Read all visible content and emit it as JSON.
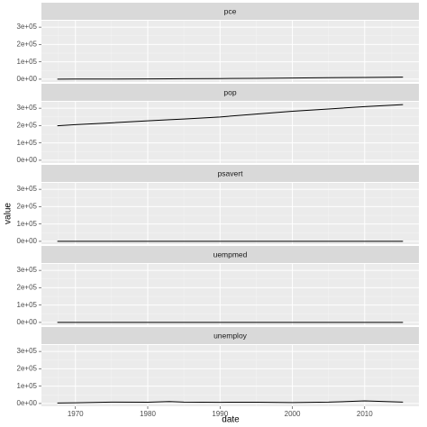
{
  "chart_data": {
    "type": "line",
    "facet": true,
    "grid": true,
    "xlabel": "date",
    "ylabel": "value",
    "line_color": "#000000",
    "x": [
      1967.5,
      1970,
      1975,
      1980,
      1983,
      1985,
      1990,
      1995,
      2000,
      2005,
      2010,
      2015.3
    ],
    "series": [
      {
        "name": "pce",
        "values": [
          507,
          640,
          1000,
          1700,
          2200,
          2650,
          3800,
          4950,
          6700,
          8800,
          10200,
          12200
        ]
      },
      {
        "name": "pop",
        "values": [
          198700,
          205000,
          215900,
          227200,
          233800,
          237900,
          249600,
          266300,
          282200,
          295500,
          309300,
          321000
        ]
      },
      {
        "name": "psavert",
        "values": [
          12.6,
          12.6,
          13,
          9.6,
          10.5,
          9.9,
          7.8,
          6.4,
          4.2,
          2.8,
          5.6,
          5.2
        ]
      },
      {
        "name": "uempmed",
        "values": [
          4.5,
          4.4,
          8,
          6.6,
          10,
          7,
          5.3,
          8.3,
          6,
          8.9,
          21,
          11
        ]
      },
      {
        "name": "unemploy",
        "values": [
          2944,
          4100,
          7900,
          7600,
          11500,
          8300,
          7000,
          7400,
          5700,
          7700,
          15000,
          8300
        ]
      }
    ],
    "xlim": [
      1965.3,
      2017.5
    ],
    "xticks": [
      1970,
      1980,
      1990,
      2000,
      2010
    ],
    "ylim": [
      -16000,
      337000
    ],
    "yticks": [
      {
        "value": 0,
        "label": "0e+00"
      },
      {
        "value": 100000,
        "label": "1e+05"
      },
      {
        "value": 200000,
        "label": "2e+05"
      },
      {
        "value": 300000,
        "label": "3e+05"
      }
    ]
  }
}
